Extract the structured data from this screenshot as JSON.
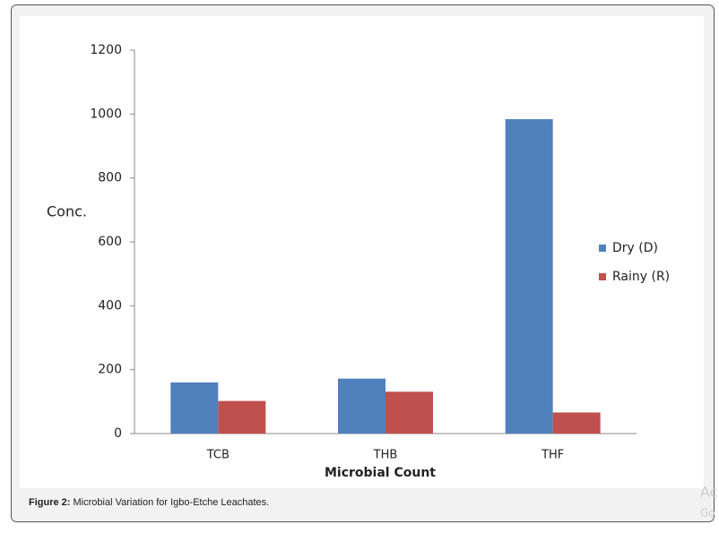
{
  "chart_data": {
    "type": "bar",
    "title": null,
    "x_label": "Microbial Count",
    "y_label": "Conc.",
    "categories": [
      "TCB",
      "THB",
      "THF"
    ],
    "series": [
      {
        "name": "Dry (D)",
        "color": "#4f81bd",
        "values": [
          160,
          172,
          984
        ]
      },
      {
        "name": "Rainy (R)",
        "color": "#c0504d",
        "values": [
          102,
          131,
          66
        ]
      }
    ],
    "ylim": [
      0,
      1200
    ],
    "yticks": [
      0,
      200,
      400,
      600,
      800,
      1000,
      1200
    ],
    "grid": false,
    "legend": "right"
  },
  "caption": {
    "label": "Figure 2:",
    "text": "Microbial Variation for Igbo-Etche Leachates."
  },
  "watermark": {
    "line1": "Ac",
    "line2": "Go"
  }
}
